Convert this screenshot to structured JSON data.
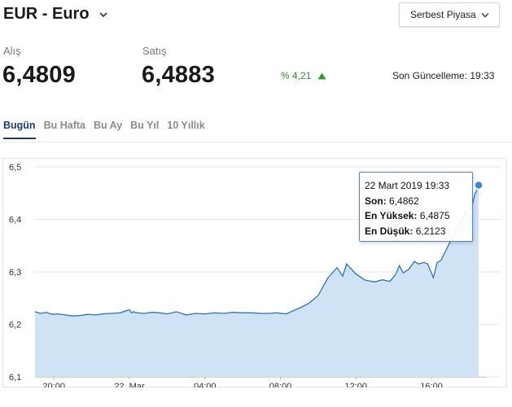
{
  "header": {
    "title": "EUR - Euro",
    "market_select": "Serbest Piyasa"
  },
  "rates": {
    "buy_label": "Alış",
    "buy_value": "6,4809",
    "sell_label": "Satış",
    "sell_value": "6,4883",
    "change": "% 4,21",
    "change_direction": "up",
    "last_update": "Son Güncelleme: 19:33"
  },
  "tabs": [
    {
      "label": "Bugün",
      "active": true
    },
    {
      "label": "Bu Hafta",
      "active": false
    },
    {
      "label": "Bu Ay",
      "active": false
    },
    {
      "label": "Bu Yıl",
      "active": false
    },
    {
      "label": "10 Yıllık",
      "active": false
    }
  ],
  "colors": {
    "line": "#2f72b8",
    "area": "#cfe3f5",
    "marker": "#3b86d6",
    "positive": "#2d8a2d",
    "active_tab": "#1e3a7b"
  },
  "tooltip": {
    "date": "22 Mart 2019 19:33",
    "last_label": "Son:",
    "last_value": "6,4862",
    "high_label": "En Yüksek:",
    "high_value": "6,4875",
    "low_label": "En Düşük:",
    "low_value": "6,2123"
  },
  "chart_data": {
    "type": "area",
    "title": "",
    "xlabel": "",
    "ylabel": "",
    "ylim": [
      6.1,
      6.5
    ],
    "y_ticks": [
      "6,1",
      "6,2",
      "6,3",
      "6,4",
      "6,5"
    ],
    "x_ticks": [
      "20:00",
      "22. Mar",
      "04:00",
      "08:00",
      "12:00",
      "16:00"
    ],
    "grid": true,
    "x_hours_from_1900": [
      0.0,
      0.3,
      0.6,
      0.9,
      1.2,
      1.6,
      2.0,
      2.4,
      2.8,
      3.2,
      3.6,
      4.0,
      4.5,
      5.0,
      5.1,
      5.2,
      5.4,
      5.8,
      6.2,
      6.6,
      7.0,
      7.5,
      8.0,
      8.5,
      9.0,
      9.5,
      10.0,
      10.5,
      11.0,
      11.5,
      12.0,
      12.4,
      12.8,
      13.3,
      14.0,
      14.5,
      15.0,
      15.5,
      16.0,
      16.3,
      16.5,
      17.0,
      17.5,
      18.0,
      18.4,
      18.8,
      19.1,
      19.3,
      19.5,
      19.8,
      20.1,
      20.3,
      20.6,
      20.8,
      21.1,
      21.3,
      21.5,
      22.0,
      22.4,
      22.8,
      23.0,
      23.3,
      23.5
    ],
    "values": [
      6.224,
      6.221,
      6.223,
      6.219,
      6.22,
      6.218,
      6.216,
      6.217,
      6.219,
      6.218,
      6.22,
      6.221,
      6.222,
      6.228,
      6.222,
      6.224,
      6.222,
      6.221,
      6.223,
      6.222,
      6.22,
      6.224,
      6.218,
      6.221,
      6.22,
      6.222,
      6.221,
      6.223,
      6.222,
      6.222,
      6.221,
      6.221,
      6.222,
      6.22,
      6.231,
      6.24,
      6.255,
      6.288,
      6.308,
      6.292,
      6.315,
      6.296,
      6.284,
      6.281,
      6.285,
      6.282,
      6.295,
      6.312,
      6.298,
      6.305,
      6.32,
      6.315,
      6.318,
      6.315,
      6.289,
      6.318,
      6.322,
      6.358,
      6.385,
      6.415,
      6.403,
      6.448,
      6.462
    ]
  }
}
